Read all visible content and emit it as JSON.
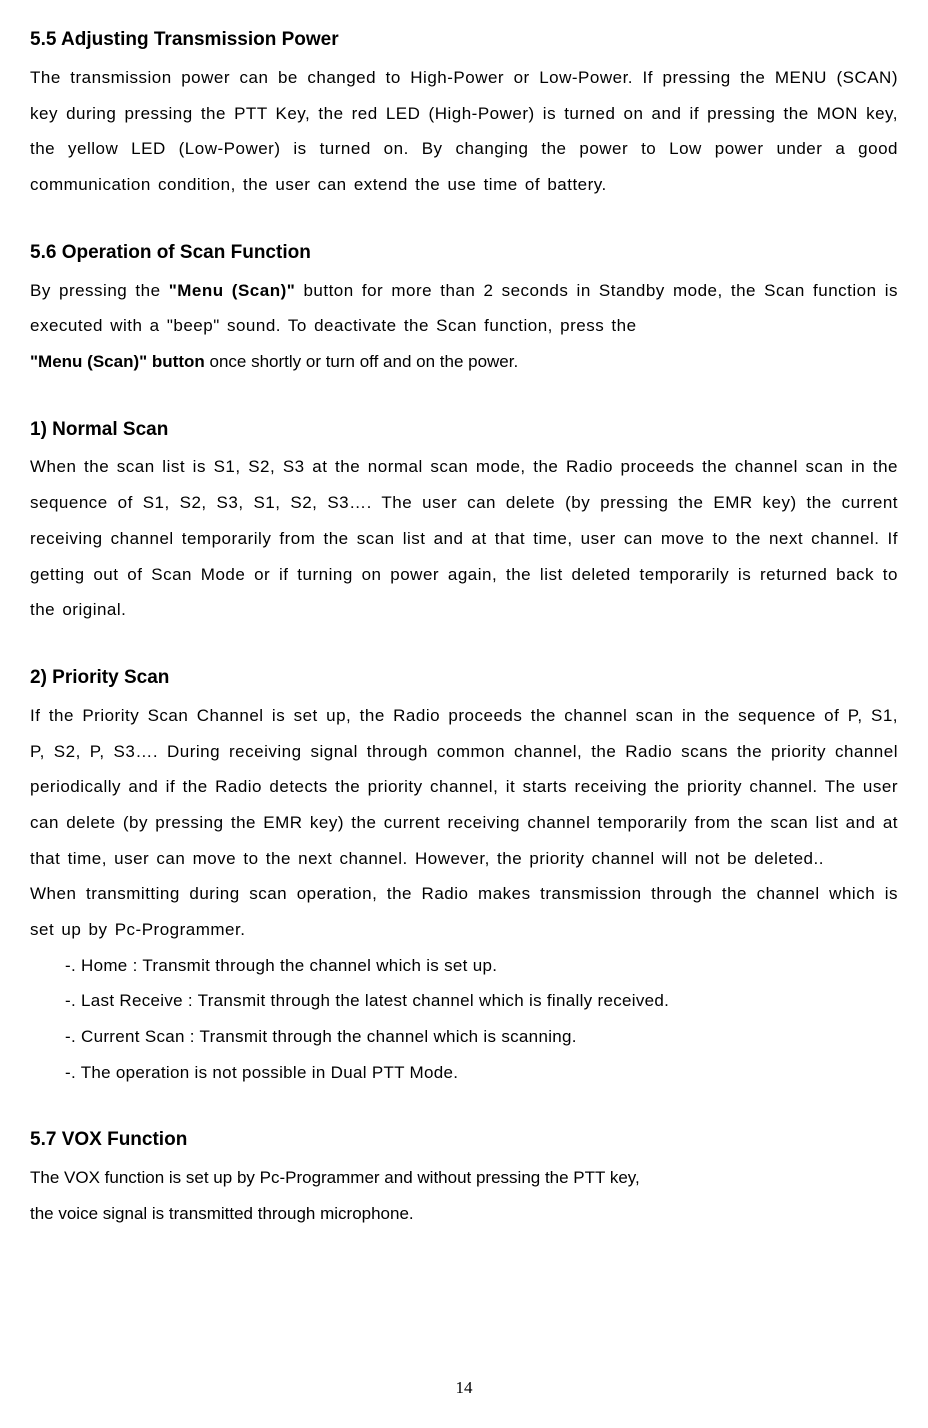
{
  "sections": {
    "s55": {
      "title": "5.5 Adjusting Transmission Power",
      "body": "The transmission power can be changed to High-Power or Low-Power. If pressing the MENU (SCAN) key during pressing the PTT Key, the red LED (High-Power) is turned on and if pressing the MON key, the yellow LED (Low-Power) is turned on. By changing the power to Low power under a good communication condition, the user can extend the use time of battery."
    },
    "s56": {
      "title": "5.6 Operation of Scan Function",
      "body_part1": "By pressing the ",
      "body_bold1": "\"Menu (Scan)\"",
      "body_part2": " button for more than 2 seconds in Standby mode, the Scan function is executed with a \"beep\" sound. To deactivate the Scan function, press the",
      "body_bold2": "\"Menu (Scan)\" button",
      "body_part3": " once shortly or turn off and on the power."
    },
    "sub1": {
      "title": "1) Normal Scan",
      "body": "When the scan list is S1, S2, S3 at the normal scan mode, the Radio proceeds the channel scan in the sequence of S1, S2, S3, S1, S2, S3…. The user can delete (by pressing the EMR key) the current receiving channel temporarily from the scan list and at that time, user can move to the next channel. If getting out of Scan Mode or if turning on power again, the list deleted temporarily is returned back to the original."
    },
    "sub2": {
      "title": "2) Priority Scan",
      "body1": "If the Priority Scan Channel is set up, the Radio proceeds the channel scan in the sequence of P, S1, P, S2, P, S3…. During receiving signal through common channel, the Radio scans the priority channel periodically and if the Radio detects the priority channel, it starts receiving the priority channel. The user can delete (by pressing the EMR key) the current receiving channel temporarily from the scan list and at that time, user can move to the next channel. However, the priority channel will not be deleted..",
      "body2": "When transmitting during scan operation, the Radio makes transmission through the channel which is set up by Pc-Programmer.",
      "item1": "-. Home           : Transmit through the channel which is set up.",
      "item2": "-. Last Receive    : Transmit through the latest channel which is finally received.",
      "item3": "-. Current Scan    : Transmit through the channel which is scanning.",
      "item4": "-. The operation is not possible in Dual PTT Mode."
    },
    "s57": {
      "title": "5.7 VOX Function",
      "body1": "The VOX function is set up by Pc-Programmer and without pressing the PTT key,",
      "body2": "the voice signal is transmitted through microphone."
    }
  },
  "page_number": "14"
}
